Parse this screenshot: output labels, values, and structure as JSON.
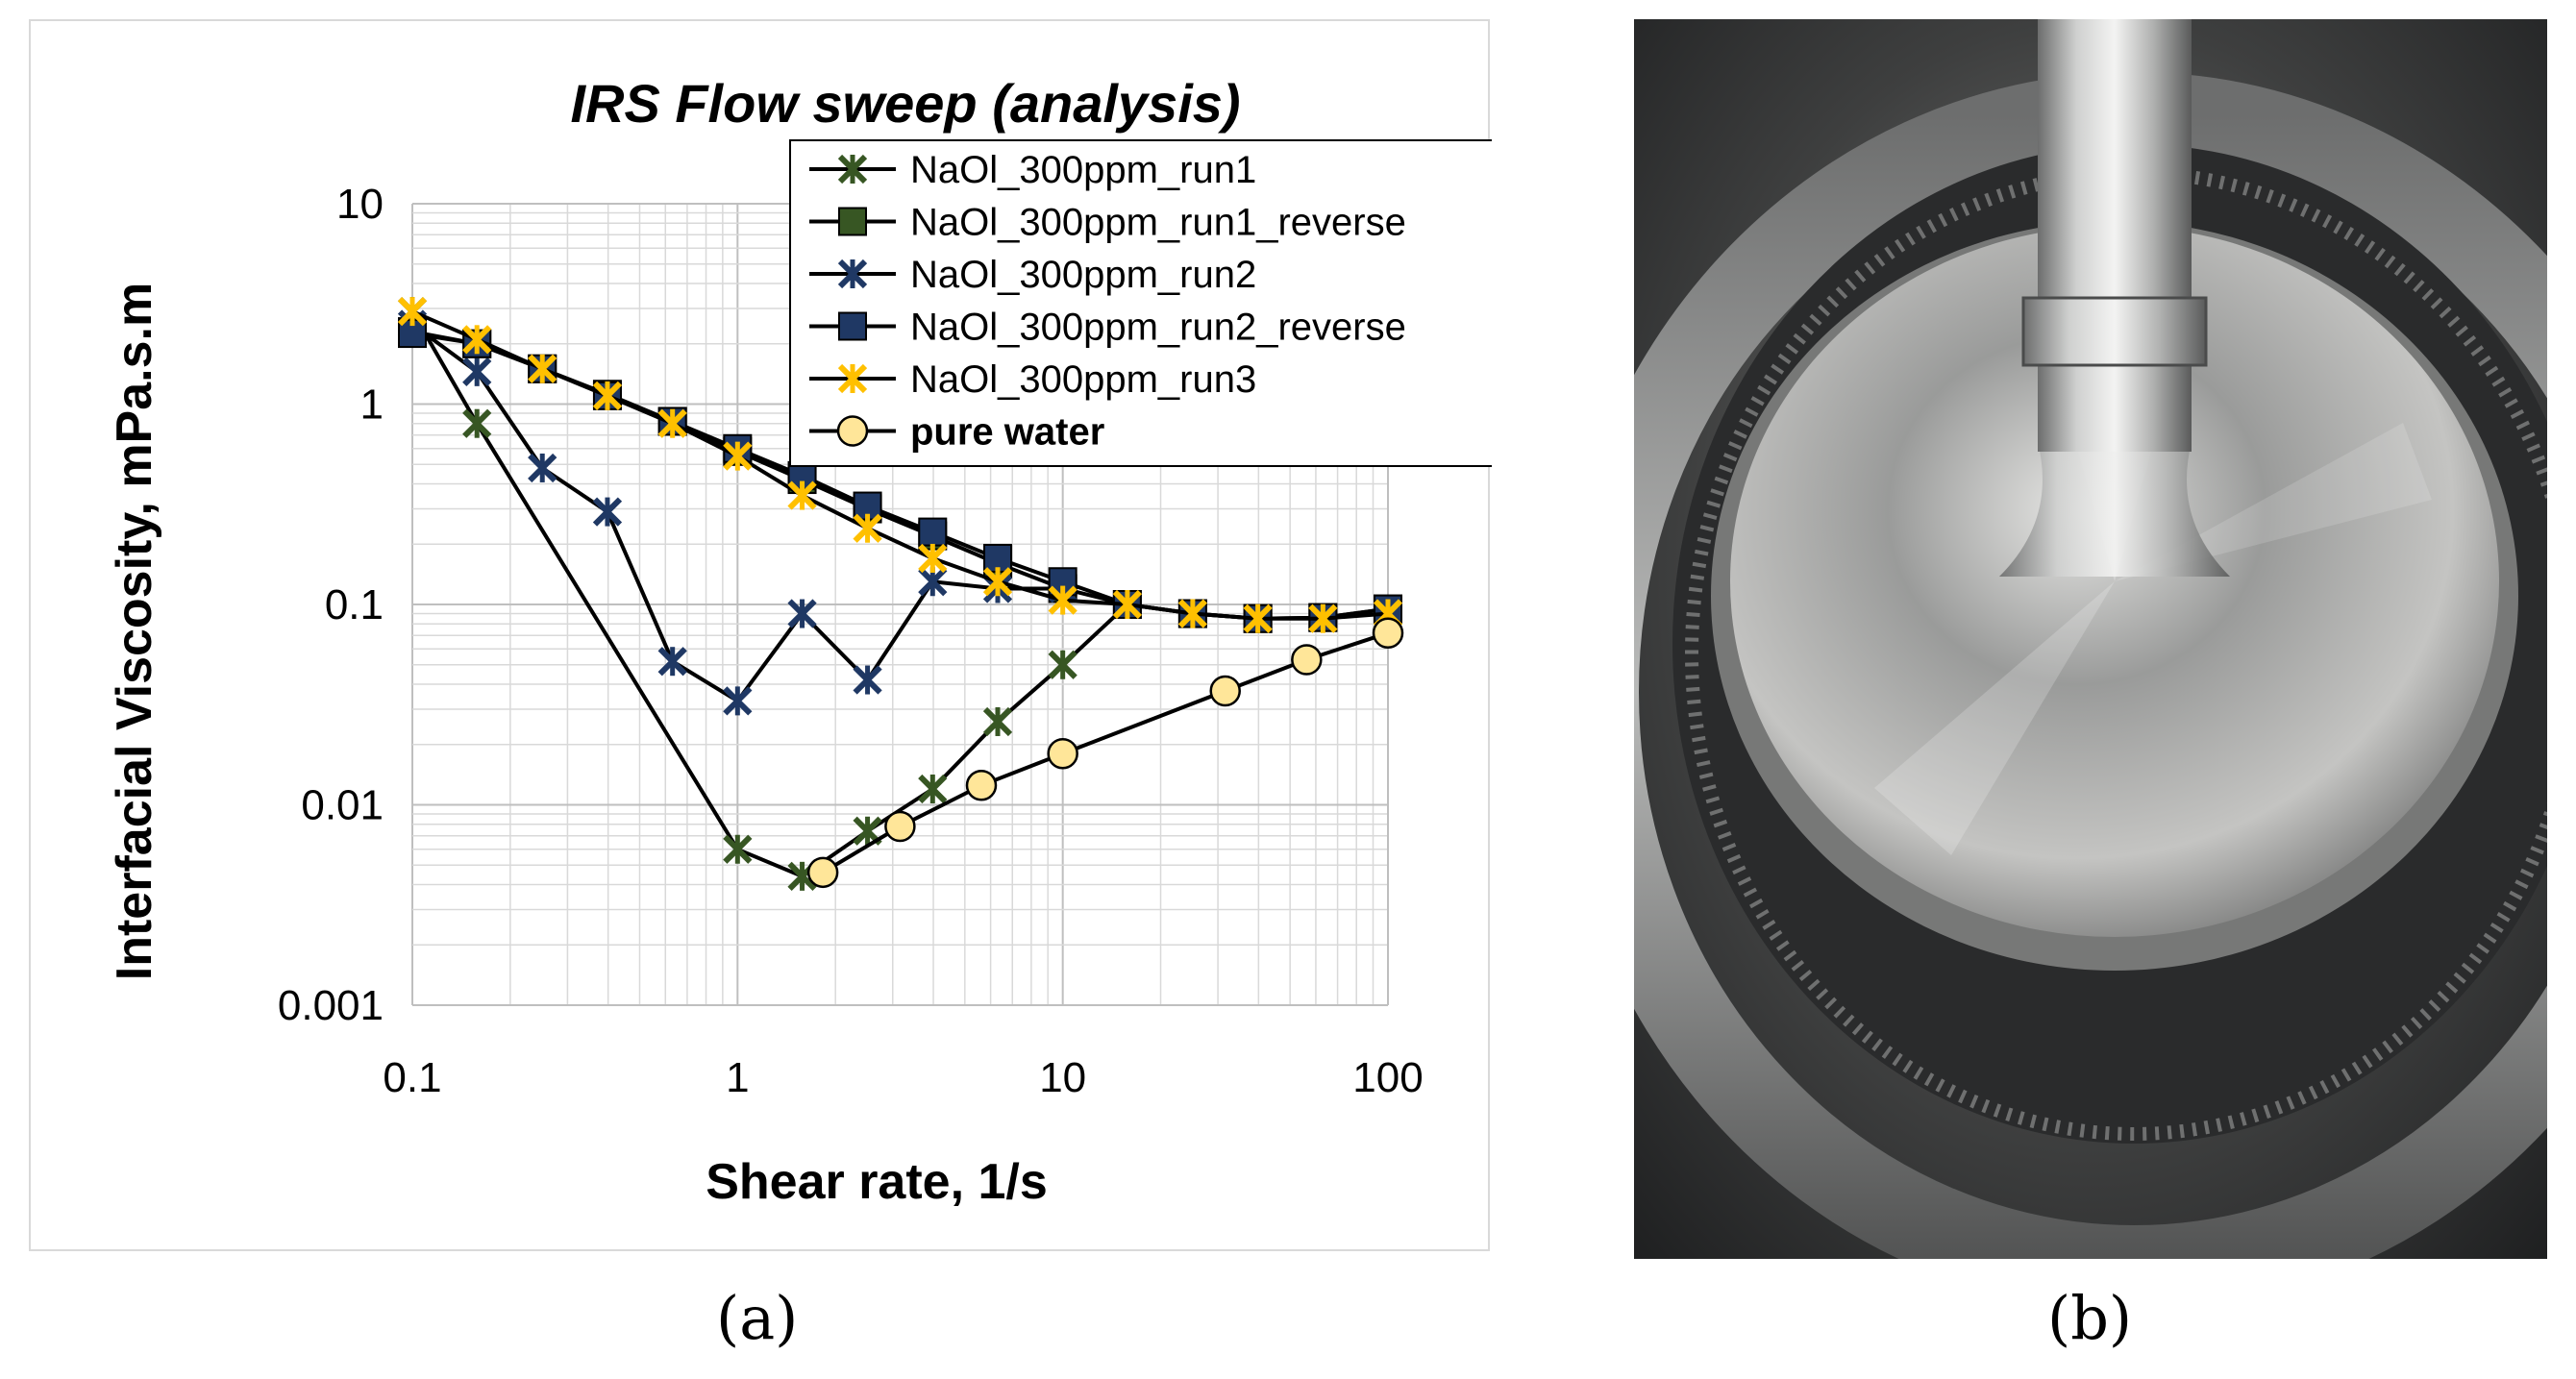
{
  "chart_data": {
    "type": "line",
    "scale": "log-log",
    "title": "IRS Flow sweep (analysis)",
    "xlabel": "Shear rate, 1/s",
    "ylabel": "Interfacial Viscosity, mPa.s.m",
    "xlim": [
      0.1,
      100
    ],
    "ylim": [
      0.001,
      10
    ],
    "xticks": [
      "0.1",
      "1",
      "10",
      "100"
    ],
    "yticks": [
      "0.001",
      "0.01",
      "0.1",
      "1",
      "10"
    ],
    "grid": true,
    "legend_position": "top-right",
    "series": [
      {
        "name": "NaOl_300ppm_run1",
        "marker": "asterisk",
        "color": "#375623",
        "x": [
          0.1,
          0.158,
          1,
          1.58,
          2.51,
          3.98,
          6.31,
          10,
          15.8
        ],
        "y": [
          2.9,
          0.8,
          0.006,
          0.0044,
          0.0074,
          0.012,
          0.026,
          0.05,
          0.1
        ]
      },
      {
        "name": "NaOl_300ppm_run1_reverse",
        "marker": "square",
        "color": "#375623",
        "x": [
          100,
          63.1,
          39.8,
          25.1,
          15.8,
          10,
          6.31,
          3.98,
          2.51,
          1.58,
          1,
          0.631,
          0.398,
          0.251,
          0.158,
          0.1
        ],
        "y": [
          0.095,
          0.086,
          0.085,
          0.09,
          0.1,
          0.12,
          0.16,
          0.22,
          0.3,
          0.42,
          0.58,
          0.82,
          1.12,
          1.5,
          2.0,
          2.3
        ]
      },
      {
        "name": "NaOl_300ppm_run2",
        "marker": "asterisk",
        "color": "#1f3864",
        "x": [
          0.1,
          0.158,
          0.251,
          0.398,
          0.631,
          1,
          1.58,
          2.51,
          3.98,
          6.31,
          10
        ],
        "y": [
          2.5,
          1.45,
          0.48,
          0.29,
          0.052,
          0.033,
          0.09,
          0.042,
          0.13,
          0.12,
          0.12
        ]
      },
      {
        "name": "NaOl_300ppm_run2_reverse",
        "marker": "square",
        "color": "#1f3864",
        "x": [
          100,
          63.1,
          39.8,
          25.1,
          15.8,
          10,
          6.31,
          3.98,
          2.51,
          1.58,
          1,
          0.631,
          0.398,
          0.251,
          0.158,
          0.1
        ],
        "y": [
          0.095,
          0.086,
          0.085,
          0.09,
          0.1,
          0.13,
          0.17,
          0.23,
          0.31,
          0.44,
          0.6,
          0.82,
          1.1,
          1.5,
          2.0,
          2.25
        ]
      },
      {
        "name": "NaOl_300ppm_run3",
        "marker": "asterisk",
        "color": "#ffc000",
        "x": [
          0.1,
          0.158,
          0.251,
          0.398,
          0.631,
          1,
          1.58,
          2.51,
          3.98,
          6.31,
          10,
          15.8,
          25.1,
          39.8,
          63.1,
          100
        ],
        "y": [
          2.9,
          2.1,
          1.5,
          1.1,
          0.8,
          0.55,
          0.35,
          0.24,
          0.17,
          0.13,
          0.105,
          0.1,
          0.09,
          0.085,
          0.085,
          0.09
        ]
      },
      {
        "name": "pure water",
        "marker": "circle",
        "color": "#ffe699",
        "x": [
          1.83,
          3.16,
          5.62,
          10,
          31.6,
          56.2,
          100
        ],
        "y": [
          0.0046,
          0.0078,
          0.0125,
          0.018,
          0.037,
          0.053,
          0.072
        ]
      }
    ]
  },
  "captions": {
    "a": "(a)",
    "b": "(b)"
  },
  "photo": {
    "description_name": "rheometer-ring-geometry"
  }
}
